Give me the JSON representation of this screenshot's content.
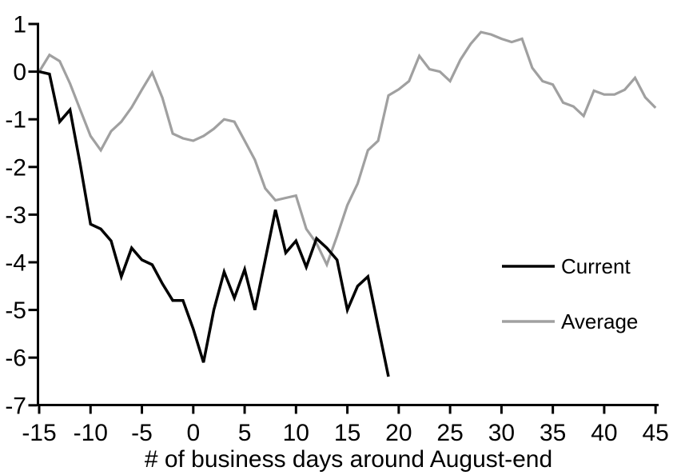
{
  "chart_data": {
    "type": "line",
    "title": "",
    "xlabel": "# of business days around August-end",
    "ylabel": "",
    "xlim": [
      -15,
      45
    ],
    "ylim": [
      -7,
      1
    ],
    "grid": false,
    "x_ticks": [
      -15,
      -10,
      -5,
      0,
      5,
      10,
      15,
      20,
      25,
      30,
      35,
      40,
      45
    ],
    "y_ticks": [
      1,
      0,
      -1,
      -2,
      -3,
      -4,
      -5,
      -6,
      -7
    ],
    "legend_position": "inside-right",
    "series": [
      {
        "name": "Current",
        "color": "#000000",
        "x_start": -15,
        "x_step": 1,
        "values": [
          0,
          -0.05,
          -1.05,
          -0.8,
          -1.95,
          -3.2,
          -3.3,
          -3.55,
          -4.3,
          -3.7,
          -3.95,
          -4.05,
          -4.45,
          -4.8,
          -4.8,
          -5.4,
          -6.1,
          -5.0,
          -4.2,
          -4.75,
          -4.15,
          -5.0,
          -3.95,
          -2.9,
          -3.8,
          -3.55,
          -4.1,
          -3.5,
          -3.7,
          -3.95,
          -5.0,
          -4.5,
          -4.3,
          -5.35,
          -6.4
        ]
      },
      {
        "name": "Average",
        "color": "#a0a0a0",
        "x_start": -15,
        "x_step": 1,
        "values": [
          0,
          0.35,
          0.22,
          -0.25,
          -0.8,
          -1.35,
          -1.65,
          -1.25,
          -1.05,
          -0.75,
          -0.38,
          -0.02,
          -0.55,
          -1.3,
          -1.4,
          -1.45,
          -1.35,
          -1.2,
          -1.0,
          -1.05,
          -1.45,
          -1.85,
          -2.45,
          -2.7,
          -2.65,
          -2.6,
          -3.3,
          -3.6,
          -4.05,
          -3.45,
          -2.8,
          -2.35,
          -1.65,
          -1.45,
          -0.5,
          -0.37,
          -0.2,
          0.33,
          0.05,
          0.0,
          -0.2,
          0.25,
          0.58,
          0.83,
          0.78,
          0.69,
          0.62,
          0.69,
          0.08,
          -0.2,
          -0.27,
          -0.65,
          -0.73,
          -0.93,
          -0.4,
          -0.48,
          -0.48,
          -0.38,
          -0.13,
          -0.54,
          -0.76
        ]
      }
    ]
  },
  "legend": {
    "items": [
      {
        "label": "Current",
        "color": "#000000"
      },
      {
        "label": "Average",
        "color": "#a0a0a0"
      }
    ]
  },
  "colors": {
    "axis": "#000000",
    "background": "#ffffff"
  }
}
